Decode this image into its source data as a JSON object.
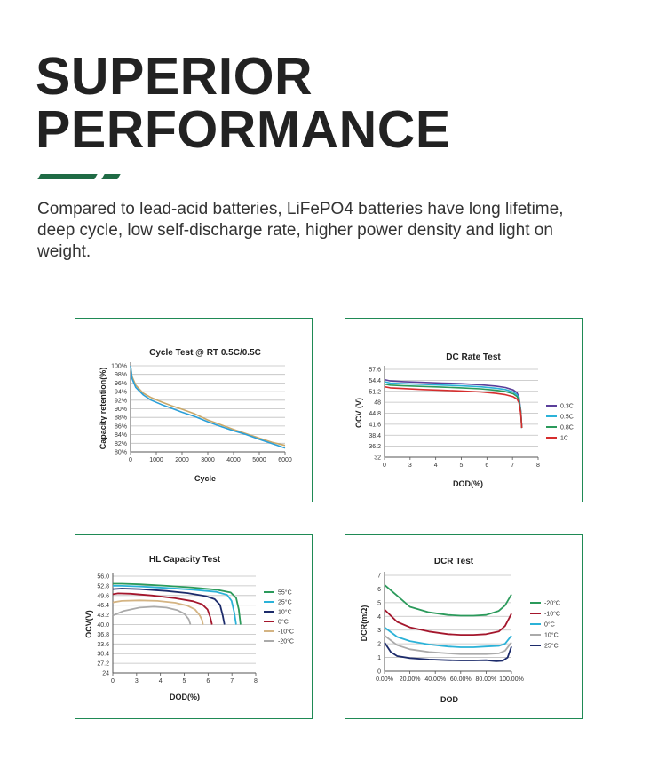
{
  "header": {
    "title_line1": "SUPERIOR",
    "title_line2": "PERFORMANCE",
    "description": "Compared to lead-acid batteries, LiFePO4 batteries have long lifetime, deep cycle, low self-discharge rate, higher power density and light on weight.",
    "accent_color": "#1f6b45"
  },
  "chart_data": [
    {
      "type": "line",
      "title": "Cycle Test @ RT 0.5C/0.5C",
      "xlabel": "Cycle",
      "ylabel": "Capacity retention(%)",
      "xlim": [
        0,
        6000
      ],
      "ylim": [
        80,
        100
      ],
      "x_ticks": [
        "0",
        "1000",
        "2000",
        "3000",
        "4000",
        "5000",
        "6000"
      ],
      "y_ticks": [
        "100%",
        "98%",
        "96%",
        "94%",
        "92%",
        "90%",
        "88%",
        "86%",
        "84%",
        "82%",
        "80%"
      ],
      "series": [
        {
          "name": "tan",
          "color": "#c9a86a",
          "x": [
            0,
            60,
            200,
            500,
            800,
            1200,
            1600,
            2000,
            2500,
            3000,
            3500,
            4000,
            4500,
            5000,
            5500,
            6000
          ],
          "y": [
            100,
            97.5,
            95.5,
            93.6,
            92.6,
            91.6,
            90.7,
            89.9,
            88.8,
            87.4,
            86.3,
            85.2,
            84.2,
            83.2,
            82.2,
            81.5
          ]
        },
        {
          "name": "blue",
          "color": "#2a9fd8",
          "x": [
            0,
            60,
            200,
            500,
            800,
            1200,
            1600,
            2000,
            2500,
            3000,
            3500,
            4000,
            4500,
            5000,
            5500,
            6000
          ],
          "y": [
            100,
            97,
            95,
            93.2,
            92,
            91,
            90.1,
            89.2,
            88.2,
            87,
            85.9,
            84.9,
            84,
            82.9,
            81.9,
            80.9
          ]
        }
      ]
    },
    {
      "type": "line",
      "title": "DC Rate Test",
      "xlabel": "DOD(%)",
      "ylabel": "OCV (V)",
      "xlim": [
        0,
        8
      ],
      "ylim": [
        32,
        57.6
      ],
      "x_ticks": [
        "0",
        "3",
        "4",
        "5",
        "6",
        "7",
        "8"
      ],
      "y_ticks": [
        "57.6",
        "54.4",
        "51.2",
        "48",
        "44.8",
        "41.6",
        "38.4",
        "36.2",
        "32"
      ],
      "series": [
        {
          "name": "0.3C",
          "color": "#5a3f9a",
          "x": [
            0,
            0.3,
            1,
            2,
            3,
            4,
            5,
            5.8,
            6.3,
            6.7,
            6.9,
            7.0,
            7.1,
            7.15
          ],
          "y": [
            54.6,
            54.2,
            54.0,
            53.8,
            53.6,
            53.4,
            53.1,
            52.7,
            52.3,
            51.6,
            50.8,
            49.5,
            45.5,
            40.5
          ]
        },
        {
          "name": "0.5C",
          "color": "#2bb2d8",
          "x": [
            0,
            0.3,
            1,
            2,
            3,
            4,
            5,
            5.8,
            6.3,
            6.7,
            6.9,
            7.0,
            7.1,
            7.15
          ],
          "y": [
            54.0,
            53.6,
            53.4,
            53.2,
            53.0,
            52.8,
            52.5,
            52.1,
            51.7,
            51.0,
            50.2,
            49.0,
            45.2,
            40.5
          ]
        },
        {
          "name": "0.8C",
          "color": "#2b9a5b",
          "x": [
            0,
            0.3,
            1,
            2,
            3,
            4,
            5,
            5.8,
            6.3,
            6.7,
            6.9,
            7.0,
            7.1,
            7.15
          ],
          "y": [
            53.3,
            53.0,
            52.8,
            52.6,
            52.4,
            52.2,
            51.9,
            51.5,
            51.1,
            50.5,
            49.7,
            48.6,
            45.0,
            40.5
          ]
        },
        {
          "name": "1C",
          "color": "#d62d2d",
          "x": [
            0,
            0.3,
            1,
            2,
            3,
            4,
            5,
            5.8,
            6.3,
            6.7,
            6.9,
            7.0,
            7.1,
            7.15
          ],
          "y": [
            52.5,
            52.2,
            52.0,
            51.7,
            51.5,
            51.3,
            51.0,
            50.6,
            50.2,
            49.6,
            48.9,
            47.9,
            44.6,
            40.5
          ]
        }
      ]
    },
    {
      "type": "line",
      "title": "HL Capacity Test",
      "xlabel": "DOD(%)",
      "ylabel": "OCV(V)",
      "xlim": [
        0,
        8
      ],
      "ylim": [
        24,
        56
      ],
      "x_ticks": [
        "0",
        "3",
        "4",
        "5",
        "6",
        "7",
        "8"
      ],
      "y_ticks": [
        "56.0",
        "52.8",
        "49.6",
        "46.4",
        "43.2",
        "40.0",
        "36.8",
        "33.6",
        "30.4",
        "27.2",
        "24"
      ],
      "series": [
        {
          "name": "55°C",
          "color": "#2b9a5b",
          "x": [
            0,
            0.5,
            1.5,
            3,
            4.5,
            5.8,
            6.6,
            6.9,
            7.05,
            7.15
          ],
          "y": [
            53.5,
            53.5,
            53.3,
            52.8,
            52.2,
            51.5,
            50.6,
            48.8,
            45.0,
            40.0
          ]
        },
        {
          "name": "25°C",
          "color": "#2bb2d8",
          "x": [
            0,
            0.5,
            1.5,
            3,
            4.5,
            5.8,
            6.4,
            6.65,
            6.8,
            6.9
          ],
          "y": [
            52.8,
            52.8,
            52.6,
            52.1,
            51.5,
            50.8,
            49.8,
            47.8,
            44.0,
            40.0
          ]
        },
        {
          "name": "10°C",
          "color": "#1c2b6b",
          "x": [
            0,
            0.5,
            1.5,
            3,
            4.2,
            5.2,
            5.7,
            6.0,
            6.15,
            6.25
          ],
          "y": [
            51.7,
            51.9,
            51.7,
            51.1,
            50.4,
            49.4,
            48.4,
            46.5,
            43.0,
            40.0
          ]
        },
        {
          "name": "0°C",
          "color": "#a4162c",
          "x": [
            0,
            0.3,
            1,
            2.2,
            3.5,
            4.5,
            5.0,
            5.3,
            5.45,
            5.55
          ],
          "y": [
            50.0,
            50.3,
            50.2,
            49.6,
            48.7,
            47.7,
            46.7,
            45.0,
            42.5,
            40.0
          ]
        },
        {
          "name": "-10°C",
          "color": "#d4b483",
          "x": [
            0,
            0.5,
            1.5,
            2.5,
            3.5,
            4.2,
            4.6,
            4.85,
            5.0,
            5.05
          ],
          "y": [
            47.3,
            47.8,
            48.0,
            47.8,
            47.2,
            46.2,
            45.0,
            43.2,
            41.5,
            40.0
          ]
        },
        {
          "name": "-20°C",
          "color": "#aaaaaa",
          "x": [
            0,
            0.6,
            1.5,
            2.3,
            3.0,
            3.6,
            4.0,
            4.25,
            4.35
          ],
          "y": [
            43.0,
            44.5,
            45.6,
            45.9,
            45.6,
            44.8,
            43.6,
            41.8,
            40.0
          ]
        }
      ]
    },
    {
      "type": "line",
      "title": "DCR Test",
      "xlabel": "DOD",
      "ylabel": "DCR(mΩ)",
      "xlim": [
        0,
        100
      ],
      "ylim": [
        0,
        7
      ],
      "x_ticks": [
        "0.00%",
        "20.00%",
        "40.00%",
        "60.00%",
        "80.00%",
        "100.00%"
      ],
      "y_ticks": [
        "7",
        "6",
        "5",
        "4",
        "3",
        "2",
        "1",
        "0"
      ],
      "series": [
        {
          "name": "-20°C",
          "color": "#2b9a5b",
          "x": [
            0,
            10,
            20,
            35,
            50,
            60,
            70,
            80,
            90,
            95,
            100
          ],
          "y": [
            6.3,
            5.5,
            4.7,
            4.3,
            4.1,
            4.05,
            4.05,
            4.1,
            4.4,
            4.8,
            5.6
          ]
        },
        {
          "name": "-10°C",
          "color": "#a4162c",
          "x": [
            0,
            10,
            20,
            35,
            50,
            60,
            70,
            80,
            90,
            95,
            100
          ],
          "y": [
            4.5,
            3.6,
            3.2,
            2.9,
            2.7,
            2.65,
            2.65,
            2.7,
            2.9,
            3.3,
            4.2
          ]
        },
        {
          "name": "0°C",
          "color": "#2bb2d8",
          "x": [
            0,
            10,
            20,
            35,
            50,
            60,
            70,
            80,
            90,
            95,
            100
          ],
          "y": [
            3.2,
            2.5,
            2.2,
            1.95,
            1.8,
            1.75,
            1.75,
            1.8,
            1.85,
            2.0,
            2.6
          ]
        },
        {
          "name": "10°C",
          "color": "#aaaaaa",
          "x": [
            0,
            10,
            20,
            35,
            50,
            60,
            70,
            80,
            90,
            95,
            100
          ],
          "y": [
            2.6,
            1.9,
            1.6,
            1.4,
            1.3,
            1.25,
            1.25,
            1.25,
            1.3,
            1.5,
            2.1
          ]
        },
        {
          "name": "25°C",
          "color": "#1c2b6b",
          "x": [
            0,
            5,
            10,
            20,
            35,
            50,
            60,
            70,
            80,
            88,
            93,
            97,
            100
          ],
          "y": [
            2.1,
            1.4,
            1.1,
            0.95,
            0.85,
            0.8,
            0.78,
            0.78,
            0.8,
            0.72,
            0.75,
            1.0,
            1.8
          ]
        }
      ]
    }
  ]
}
